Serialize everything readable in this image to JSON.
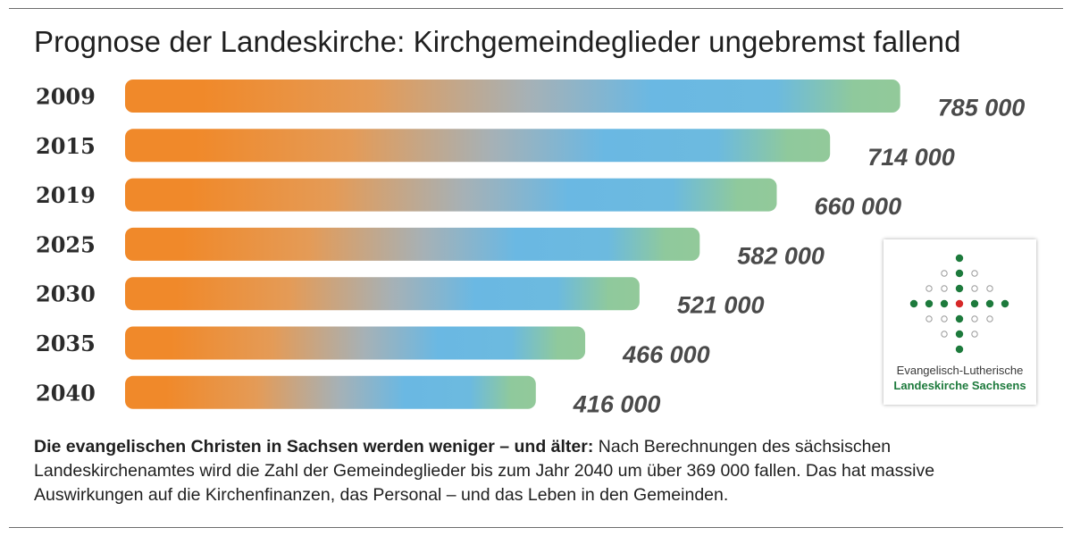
{
  "title": "Prognose der Landeskirche: Kirchgemeindeglieder ungebremst fallend",
  "chart_data": {
    "type": "bar",
    "orientation": "horizontal",
    "title": "Prognose der Landeskirche: Kirchgemeindeglieder ungebremst fallend",
    "categories": [
      "2009",
      "2015",
      "2019",
      "2025",
      "2030",
      "2035",
      "2040"
    ],
    "values": [
      785000,
      714000,
      660000,
      582000,
      521000,
      466000,
      416000
    ],
    "value_labels": [
      "785 000",
      "714 000",
      "660 000",
      "582 000",
      "521 000",
      "466 000",
      "416 000"
    ],
    "xlabel": "",
    "ylabel": "",
    "grid": false,
    "legend": "none",
    "colors": {
      "start": "#f0892a",
      "middle": "#6ab8e3",
      "end": "#8fc99c"
    }
  },
  "logo": {
    "line1": "Evangelisch-Lutherische",
    "line2": "Landeskirche Sachsens",
    "colors": {
      "green": "#1d7a3c",
      "red": "#d62828",
      "ring": "#9a9a9a"
    }
  },
  "caption": {
    "bold": "Die evangelischen Christen in Sachsen werden weniger – und älter:",
    "text": " Nach Berechnungen des sächsischen Landeskirchenamtes wird die Zahl der Gemeindeglieder bis zum Jahr 2040 um über 369 000 fallen. Das hat massive Auswirkungen auf die Kirchenfinanzen, das Personal – und das Leben in den Gemeinden."
  }
}
